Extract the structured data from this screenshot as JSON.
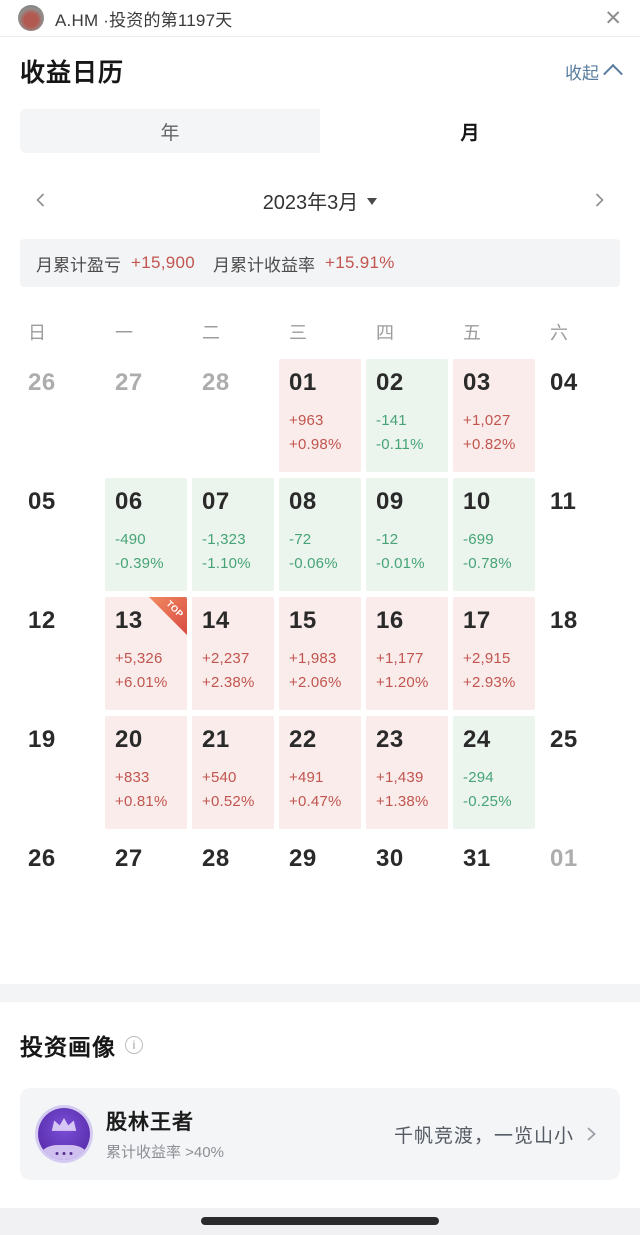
{
  "topbar": {
    "title": "A.HM ·投资的第1197天",
    "close_icon": "✕"
  },
  "section": {
    "title": "收益日历",
    "collapse_label": "收起"
  },
  "tabs": {
    "year_label": "年",
    "month_label": "月",
    "active": "月"
  },
  "month_nav": {
    "current": "2023年3月"
  },
  "summary": {
    "pl_label": "月累计盈亏",
    "pl_value": "+15,900",
    "rate_label": "月累计收益率",
    "rate_value": "+15.91%"
  },
  "calendar": {
    "weekday_headers": [
      "日",
      "一",
      "二",
      "三",
      "四",
      "五",
      "六"
    ],
    "top_badge": "TOP",
    "weeks": [
      [
        {
          "day": "26",
          "type": "muted"
        },
        {
          "day": "27",
          "type": "muted"
        },
        {
          "day": "28",
          "type": "muted"
        },
        {
          "day": "01",
          "type": "gain",
          "value": "+963",
          "pct": "+0.98%"
        },
        {
          "day": "02",
          "type": "loss",
          "value": "-141",
          "pct": "-0.11%"
        },
        {
          "day": "03",
          "type": "gain",
          "value": "+1,027",
          "pct": "+0.82%"
        },
        {
          "day": "04",
          "type": "plain"
        }
      ],
      [
        {
          "day": "05",
          "type": "plain"
        },
        {
          "day": "06",
          "type": "loss",
          "value": "-490",
          "pct": "-0.39%"
        },
        {
          "day": "07",
          "type": "loss",
          "value": "-1,323",
          "pct": "-1.10%"
        },
        {
          "day": "08",
          "type": "loss",
          "value": "-72",
          "pct": "-0.06%"
        },
        {
          "day": "09",
          "type": "loss",
          "value": "-12",
          "pct": "-0.01%"
        },
        {
          "day": "10",
          "type": "loss",
          "value": "-699",
          "pct": "-0.78%"
        },
        {
          "day": "11",
          "type": "plain"
        }
      ],
      [
        {
          "day": "12",
          "type": "plain"
        },
        {
          "day": "13",
          "type": "gain",
          "value": "+5,326",
          "pct": "+6.01%",
          "top": true
        },
        {
          "day": "14",
          "type": "gain",
          "value": "+2,237",
          "pct": "+2.38%"
        },
        {
          "day": "15",
          "type": "gain",
          "value": "+1,983",
          "pct": "+2.06%"
        },
        {
          "day": "16",
          "type": "gain",
          "value": "+1,177",
          "pct": "+1.20%"
        },
        {
          "day": "17",
          "type": "gain",
          "value": "+2,915",
          "pct": "+2.93%"
        },
        {
          "day": "18",
          "type": "plain"
        }
      ],
      [
        {
          "day": "19",
          "type": "plain"
        },
        {
          "day": "20",
          "type": "gain",
          "value": "+833",
          "pct": "+0.81%"
        },
        {
          "day": "21",
          "type": "gain",
          "value": "+540",
          "pct": "+0.52%"
        },
        {
          "day": "22",
          "type": "gain",
          "value": "+491",
          "pct": "+0.47%"
        },
        {
          "day": "23",
          "type": "gain",
          "value": "+1,439",
          "pct": "+1.38%"
        },
        {
          "day": "24",
          "type": "loss",
          "value": "-294",
          "pct": "-0.25%"
        },
        {
          "day": "25",
          "type": "plain"
        }
      ],
      [
        {
          "day": "26",
          "type": "plain"
        },
        {
          "day": "27",
          "type": "plain"
        },
        {
          "day": "28",
          "type": "plain"
        },
        {
          "day": "29",
          "type": "plain"
        },
        {
          "day": "30",
          "type": "plain"
        },
        {
          "day": "31",
          "type": "plain"
        },
        {
          "day": "01",
          "type": "muted"
        }
      ]
    ]
  },
  "portrait": {
    "heading": "投资画像",
    "info_icon": "i",
    "title": "股林王者",
    "subtitle": "累计收益率 >40%",
    "tagline": "千帆竞渡，一览山小"
  },
  "colors": {
    "gain_text": "#c2554f",
    "gain_bg": "#f9ecea",
    "loss_text": "#47a376",
    "loss_bg": "#ebf5ee",
    "accent_blue": "#5a7d9f",
    "badge_purple": "#5b2fae",
    "badge_purple_light": "#7a4fd8",
    "top_badge_red": "#d94a42"
  }
}
